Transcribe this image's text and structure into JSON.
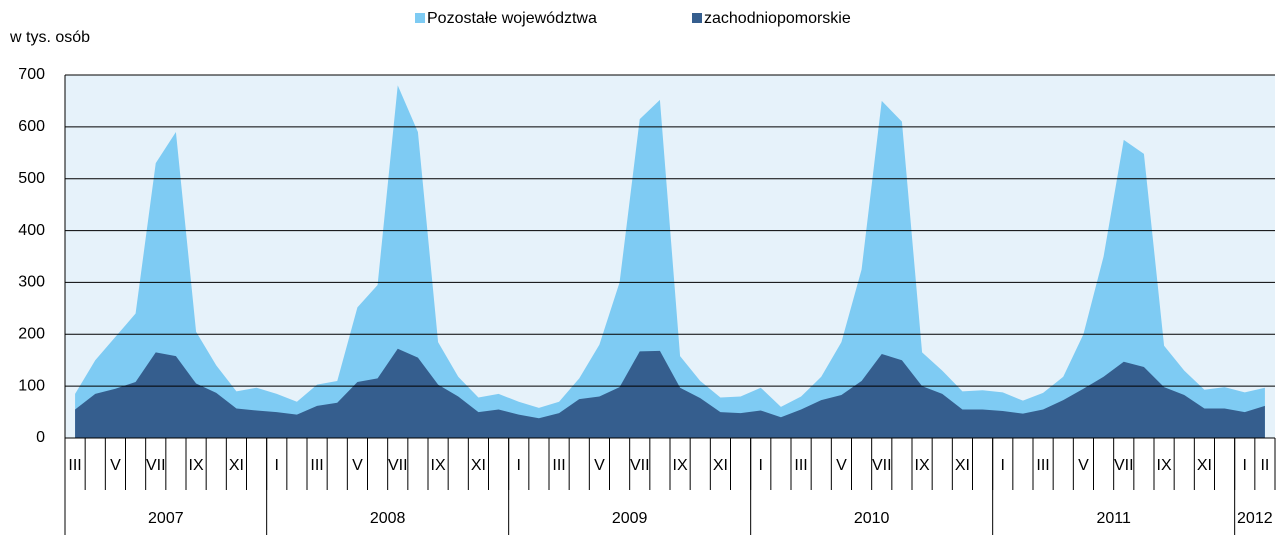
{
  "chart_data": {
    "type": "stacked-area",
    "y_label": "w tys. osób",
    "categories": [
      "III",
      null,
      "V",
      null,
      "VII",
      null,
      "IX",
      null,
      "XI",
      null,
      "I",
      null,
      "III",
      null,
      "V",
      null,
      "VII",
      null,
      "IX",
      null,
      "XI",
      null,
      "I",
      null,
      "III",
      null,
      "V",
      null,
      "VII",
      null,
      "IX",
      null,
      "XI",
      null,
      "I",
      null,
      "III",
      null,
      "V",
      null,
      "VII",
      null,
      "IX",
      null,
      "XI",
      null,
      "I",
      null,
      "III",
      null,
      "V",
      null,
      "VII",
      null,
      "IX",
      null,
      "XI",
      null,
      "I",
      "II"
    ],
    "x_groups": [
      {
        "label": "2007",
        "span": 10
      },
      {
        "label": "2008",
        "span": 12
      },
      {
        "label": "2009",
        "span": 12
      },
      {
        "label": "2010",
        "span": 12
      },
      {
        "label": "2011",
        "span": 12
      },
      {
        "label": "2012",
        "span": 2
      }
    ],
    "series": [
      {
        "name": "Pozostałe województwa",
        "color": "#7ecbf3",
        "values": [
          30,
          65,
          100,
          132,
          365,
          432,
          100,
          53,
          33,
          44,
          35,
          25,
          41,
          42,
          144,
          180,
          508,
          435,
          82,
          38,
          28,
          30,
          25,
          20,
          22,
          40,
          100,
          202,
          448,
          484,
          61,
          33,
          28,
          32,
          44,
          20,
          25,
          45,
          102,
          215,
          488,
          460,
          65,
          45,
          35,
          37,
          36,
          25,
          32,
          45,
          105,
          232,
          428,
          411,
          80,
          47,
          36,
          41,
          38,
          35
        ]
      },
      {
        "name": "zachodniopomorskie",
        "color": "#355e8e",
        "values": [
          55,
          85,
          95,
          108,
          165,
          158,
          105,
          87,
          57,
          53,
          50,
          45,
          62,
          68,
          108,
          115,
          172,
          155,
          103,
          80,
          50,
          55,
          45,
          38,
          48,
          75,
          80,
          98,
          167,
          168,
          97,
          77,
          50,
          48,
          53,
          40,
          55,
          73,
          83,
          110,
          162,
          150,
          100,
          85,
          55,
          55,
          52,
          47,
          55,
          73,
          95,
          118,
          147,
          137,
          98,
          83,
          57,
          57,
          50,
          62
        ]
      }
    ],
    "ylim": [
      0,
      700
    ],
    "yticks": [
      0,
      100,
      200,
      300,
      400,
      500,
      600,
      700
    ],
    "grid": true,
    "legend": "top"
  }
}
